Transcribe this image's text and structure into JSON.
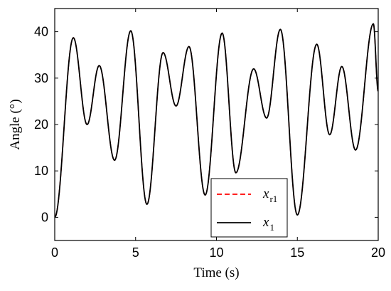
{
  "chart_data": {
    "type": "line",
    "title": "",
    "xlabel": "Time (s)",
    "ylabel": "Angle (°)",
    "xlim": [
      0,
      20
    ],
    "ylim": [
      -5,
      45
    ],
    "xticks": [
      0,
      5,
      10,
      15,
      20
    ],
    "yticks": [
      0,
      10,
      20,
      30,
      40
    ],
    "grid": false,
    "legend_position": "bottom-right",
    "series": [
      {
        "name": "x_r1",
        "label_main": "x",
        "label_sub": "r1",
        "color": "#ff0000",
        "dash": "dashed",
        "x": [
          0,
          1.15,
          2.0,
          2.75,
          3.7,
          4.7,
          5.7,
          6.7,
          7.5,
          8.3,
          9.3,
          10.35,
          11.2,
          12.3,
          13.1,
          13.95,
          15.0,
          16.2,
          17.0,
          17.75,
          18.6,
          19.7,
          20.0
        ],
        "y": [
          0,
          38.7,
          20,
          32.7,
          12.3,
          40.2,
          2.8,
          35.5,
          24,
          36.8,
          4.8,
          39.7,
          9.6,
          32,
          21.4,
          40.5,
          0.5,
          37.3,
          17.8,
          32.5,
          14.5,
          41.7,
          27.2
        ]
      },
      {
        "name": "x_1",
        "label_main": "x",
        "label_sub": "1",
        "color": "#000000",
        "dash": "solid",
        "x": [
          0,
          1.15,
          2.0,
          2.75,
          3.7,
          4.7,
          5.7,
          6.7,
          7.5,
          8.3,
          9.3,
          10.35,
          11.2,
          12.3,
          13.1,
          13.95,
          15.0,
          16.2,
          17.0,
          17.75,
          18.6,
          19.7,
          20.0
        ],
        "y": [
          0,
          38.7,
          20,
          32.7,
          12.3,
          40.2,
          2.8,
          35.5,
          24,
          36.8,
          4.8,
          39.7,
          9.6,
          32,
          21.4,
          40.5,
          0.5,
          37.3,
          17.8,
          32.5,
          14.5,
          41.7,
          27.2
        ]
      }
    ]
  }
}
